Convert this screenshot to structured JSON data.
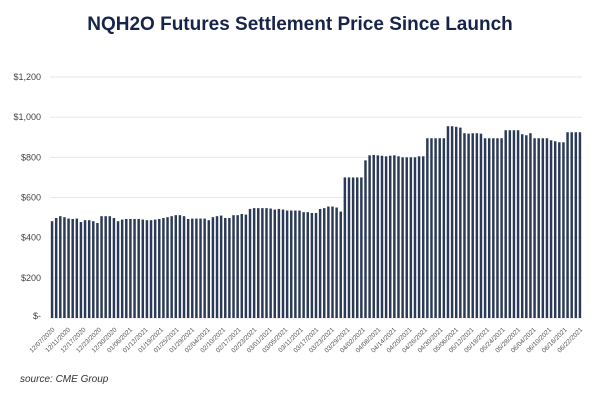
{
  "chart_data": {
    "type": "bar",
    "title": "NQH2O Futures Settlement Price Since Launch",
    "xlabel": "",
    "ylabel": "",
    "ylim": [
      0,
      1200
    ],
    "yticks": [
      "$-",
      "$200",
      "$400",
      "$600",
      "$800",
      "$1,000",
      "$1,200"
    ],
    "grid": true,
    "bar_color": "#2b3a57",
    "x_tick_labels": [
      "12/07/2020",
      "12/11/2020",
      "12/17/2020",
      "12/23/2020",
      "12/30/2020",
      "01/06/2021",
      "01/12/2021",
      "01/19/2021",
      "01/25/2021",
      "01/29/2021",
      "02/04/2021",
      "02/10/2021",
      "02/17/2021",
      "02/23/2021",
      "03/01/2021",
      "03/05/2021",
      "03/11/2021",
      "03/17/2021",
      "03/23/2021",
      "03/29/2021",
      "04/02/2021",
      "04/08/2021",
      "04/14/2021",
      "04/20/2021",
      "04/26/2021",
      "04/30/2021",
      "05/06/2021",
      "05/12/2021",
      "05/18/2021",
      "05/24/2021",
      "05/28/2021",
      "06/04/2021",
      "06/10/2021",
      "06/16/2021",
      "06/22/2021"
    ],
    "values": [
      482,
      498,
      507,
      502,
      495,
      493,
      495,
      478,
      487,
      487,
      482,
      473,
      507,
      507,
      507,
      498,
      482,
      490,
      493,
      493,
      493,
      493,
      490,
      487,
      487,
      490,
      493,
      498,
      502,
      507,
      512,
      512,
      507,
      493,
      495,
      495,
      495,
      495,
      487,
      502,
      507,
      510,
      498,
      498,
      512,
      512,
      518,
      515,
      543,
      547,
      547,
      547,
      547,
      545,
      540,
      543,
      540,
      535,
      535,
      535,
      535,
      527,
      527,
      523,
      523,
      543,
      547,
      555,
      555,
      550,
      530,
      700,
      700,
      700,
      700,
      700,
      785,
      810,
      812,
      810,
      808,
      805,
      808,
      810,
      805,
      800,
      800,
      800,
      800,
      805,
      805,
      895,
      895,
      895,
      895,
      895,
      955,
      955,
      952,
      948,
      920,
      918,
      920,
      920,
      918,
      895,
      895,
      895,
      895,
      895,
      935,
      935,
      935,
      935,
      915,
      910,
      920,
      895,
      895,
      895,
      895,
      885,
      880,
      875,
      875,
      925,
      925,
      925,
      925
    ]
  },
  "source": "source: CME Group"
}
